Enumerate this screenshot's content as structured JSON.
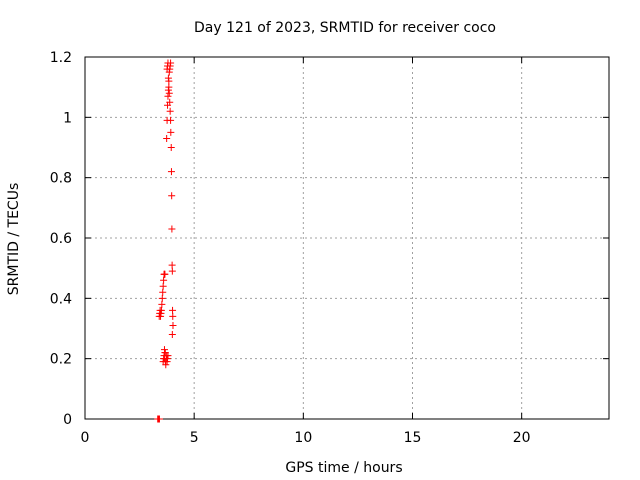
{
  "chart_data": {
    "type": "scatter",
    "title": "Day 121 of 2023, SRMTID for receiver coco",
    "xlabel": "GPS time / hours",
    "ylabel": "SRMTID / TECUs",
    "xlim": [
      0,
      24
    ],
    "ylim": [
      0,
      1.2
    ],
    "xticks": [
      0,
      5,
      10,
      15,
      20
    ],
    "xtick_labels": [
      "0",
      "5",
      "10",
      "15",
      "20"
    ],
    "yticks": [
      0,
      0.2,
      0.4,
      0.6,
      0.8,
      1,
      1.2
    ],
    "ytick_labels": [
      "0",
      "0.2",
      "0.4",
      "0.6",
      "0.8",
      "1",
      "1.2"
    ],
    "grid": true,
    "marker": "+",
    "color": "#ff0000",
    "series": [
      {
        "points": [
          [
            3.33,
            0.0
          ],
          [
            3.35,
            0.0
          ],
          [
            3.37,
            0.0
          ],
          [
            3.39,
            0.0
          ],
          [
            3.41,
            0.0
          ],
          [
            3.4,
            0.34
          ],
          [
            3.42,
            0.35
          ],
          [
            3.44,
            0.36
          ],
          [
            3.46,
            0.34
          ],
          [
            3.48,
            0.35
          ],
          [
            3.5,
            0.36
          ],
          [
            3.52,
            0.38
          ],
          [
            3.54,
            0.4
          ],
          [
            3.56,
            0.42
          ],
          [
            3.58,
            0.44
          ],
          [
            3.6,
            0.46
          ],
          [
            3.62,
            0.48
          ],
          [
            3.64,
            0.48
          ],
          [
            3.66,
            0.48
          ],
          [
            3.58,
            0.19
          ],
          [
            3.6,
            0.2
          ],
          [
            3.62,
            0.21
          ],
          [
            3.64,
            0.2
          ],
          [
            3.66,
            0.22
          ],
          [
            3.68,
            0.19
          ],
          [
            3.7,
            0.18
          ],
          [
            3.72,
            0.2
          ],
          [
            3.74,
            0.21
          ],
          [
            3.76,
            0.19
          ],
          [
            3.78,
            0.2
          ],
          [
            3.8,
            0.21
          ],
          [
            3.64,
            0.23
          ],
          [
            3.68,
            0.22
          ],
          [
            3.74,
            0.93
          ],
          [
            3.76,
            0.99
          ],
          [
            3.78,
            1.04
          ],
          [
            3.8,
            1.07
          ],
          [
            3.82,
            1.09
          ],
          [
            3.84,
            1.12
          ],
          [
            3.86,
            1.15
          ],
          [
            3.88,
            1.16
          ],
          [
            3.9,
            1.17
          ],
          [
            3.76,
            1.16
          ],
          [
            3.78,
            1.17
          ],
          [
            3.8,
            1.18
          ],
          [
            3.82,
            1.13
          ],
          [
            3.84,
            1.1
          ],
          [
            3.86,
            1.08
          ],
          [
            3.88,
            1.05
          ],
          [
            3.9,
            1.02
          ],
          [
            3.92,
            0.99
          ],
          [
            3.92,
            1.18
          ],
          [
            3.93,
            0.95
          ],
          [
            3.95,
            0.9
          ],
          [
            3.96,
            0.82
          ],
          [
            3.97,
            0.74
          ],
          [
            3.98,
            0.63
          ],
          [
            3.99,
            0.51
          ],
          [
            4.0,
            0.49
          ],
          [
            4.01,
            0.36
          ],
          [
            4.02,
            0.34
          ],
          [
            4.03,
            0.31
          ],
          [
            4.0,
            0.28
          ]
        ]
      }
    ]
  }
}
